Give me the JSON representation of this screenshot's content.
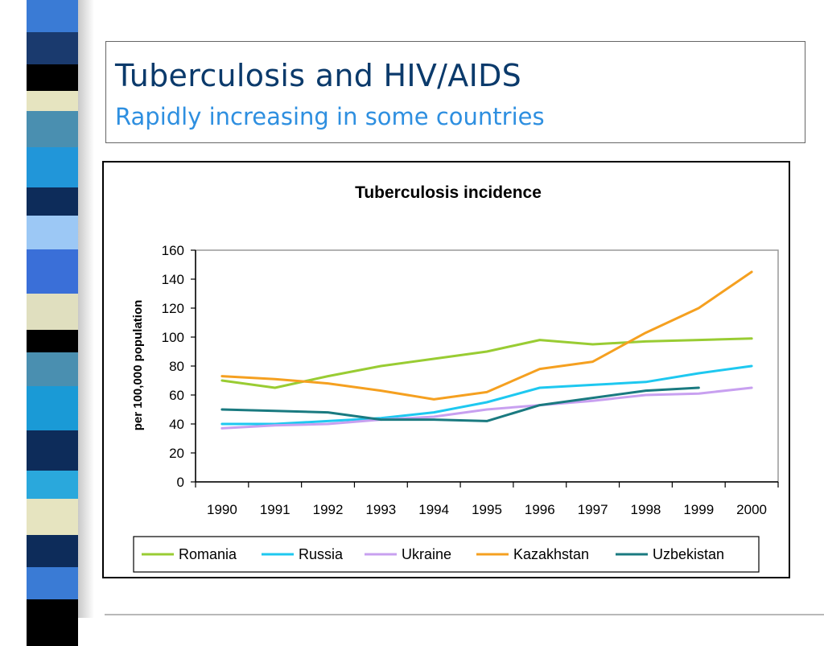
{
  "slide": {
    "title": "Tuberculosis and HIV/AIDS",
    "subtitle": "Rapidly increasing in some countries",
    "stripe_colors": [
      "#3a7bd5",
      "#1a3a6e",
      "#000000",
      "#e6e4c0",
      "#4a8fb0",
      "#2196d9",
      "#0d2c5a",
      "#9cc8f5",
      "#3a6fd8",
      "#e0dfbf",
      "#000000",
      "#4a8fb0",
      "#1a9ad6",
      "#0d2c5a",
      "#2aa8dc",
      "#e6e4c0",
      "#0d2c5a",
      "#3a7bd5",
      "#000000"
    ]
  },
  "chart_data": {
    "type": "line",
    "title": "Tuberculosis incidence",
    "xlabel": "",
    "ylabel": "per 100,000 population",
    "ylim": [
      0,
      160
    ],
    "yticks": [
      "0",
      "20",
      "40",
      "60",
      "80",
      "100",
      "120",
      "140",
      "160"
    ],
    "categories": [
      "1990",
      "1991",
      "1992",
      "1993",
      "1994",
      "1995",
      "1996",
      "1997",
      "1998",
      "1999",
      "2000"
    ],
    "grid": false,
    "legend_position": "bottom",
    "series": [
      {
        "name": "Romania",
        "color": "#99cc33",
        "values": [
          70,
          65,
          73,
          80,
          85,
          90,
          98,
          95,
          97,
          98,
          99
        ]
      },
      {
        "name": "Russia",
        "color": "#1ec8f0",
        "values": [
          40,
          40,
          42,
          44,
          48,
          55,
          65,
          67,
          69,
          75,
          80
        ]
      },
      {
        "name": "Ukraine",
        "color": "#c8a0f0",
        "values": [
          37,
          39,
          40,
          43,
          45,
          50,
          53,
          56,
          60,
          61,
          65
        ]
      },
      {
        "name": "Kazakhstan",
        "color": "#f5a020",
        "values": [
          73,
          71,
          68,
          63,
          57,
          62,
          78,
          83,
          103,
          120,
          145
        ]
      },
      {
        "name": "Uzbekistan",
        "color": "#1a7a80",
        "values": [
          50,
          49,
          48,
          43,
          43,
          42,
          53,
          58,
          63,
          65,
          null
        ]
      }
    ]
  }
}
